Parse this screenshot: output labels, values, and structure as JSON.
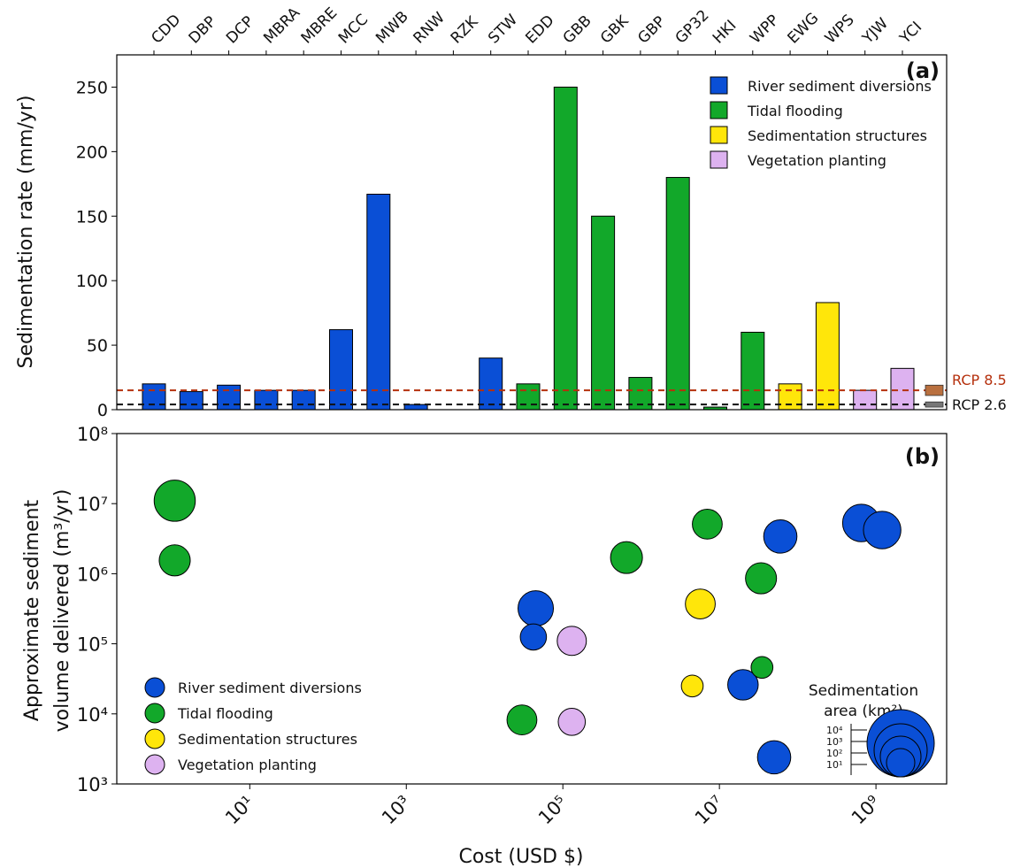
{
  "chart_data": [
    {
      "panel": "(a)",
      "type": "bar",
      "ylabel": "Sedimentation rate (mm/yr)",
      "ylim": [
        0,
        275
      ],
      "yticks": [
        0,
        50,
        100,
        150,
        200,
        250
      ],
      "grid": false,
      "legend_position": "top-right",
      "categories": [
        "CDD",
        "DBP",
        "DCP",
        "MBRA",
        "MBRE",
        "MCC",
        "MWB",
        "RNW",
        "RZK",
        "STW",
        "EDD",
        "GBB",
        "GBK",
        "GBP",
        "GP32",
        "HKI",
        "WPP",
        "EWG",
        "WPS",
        "YJW",
        "YCI"
      ],
      "values": [
        20,
        14,
        19,
        15,
        15,
        62,
        167,
        4,
        0,
        40,
        20,
        250,
        150,
        25,
        180,
        2,
        60,
        20,
        83,
        15,
        32
      ],
      "groups": [
        "River sediment diversions",
        "River sediment diversions",
        "River sediment diversions",
        "River sediment diversions",
        "River sediment diversions",
        "River sediment diversions",
        "River sediment diversions",
        "River sediment diversions",
        "River sediment diversions",
        "River sediment diversions",
        "Tidal flooding",
        "Tidal flooding",
        "Tidal flooding",
        "Tidal flooding",
        "Tidal flooding",
        "Tidal flooding",
        "Tidal flooding",
        "Sedimentation structures",
        "Sedimentation structures",
        "Vegetation planting",
        "Vegetation planting"
      ],
      "legend": [
        {
          "label": "River sediment diversions",
          "color": "#0a4fd6"
        },
        {
          "label": "Tidal flooding",
          "color": "#12a82a"
        },
        {
          "label": "Sedimentation structures",
          "color": "#ffe60a"
        },
        {
          "label": "Vegetation planting",
          "color": "#ddb2f0"
        }
      ],
      "reference_lines": [
        {
          "label": "RCP 8.5",
          "value": 15,
          "color": "#b5300d",
          "range": [
            11,
            19
          ],
          "range_color": "#b9703f"
        },
        {
          "label": "RCP 2.6",
          "value": 4,
          "color": "#111111",
          "range": [
            2,
            6
          ],
          "range_color": "#777777"
        }
      ]
    },
    {
      "panel": "(b)",
      "type": "scatter",
      "xlabel": "Cost (USD $)",
      "ylabel_line1": "Approximate sediment",
      "ylabel_line2": "volume delivered (m³/yr)",
      "x_scale": "log",
      "y_scale": "log",
      "xlim": [
        0.2,
        8000000000
      ],
      "ylim": [
        1000,
        100000000
      ],
      "xticks": [
        10,
        1000,
        100000,
        10000000,
        1000000000
      ],
      "xtick_labels": [
        "10¹",
        "10³",
        "10⁵",
        "10⁷",
        "10⁹"
      ],
      "yticks": [
        1000,
        10000,
        100000,
        1000000,
        10000000,
        100000000
      ],
      "ytick_labels": [
        "10³",
        "10⁴",
        "10⁵",
        "10⁶",
        "10⁷",
        "10⁸"
      ],
      "grid": false,
      "legend_position": "bottom-left",
      "legend": [
        {
          "label": "River sediment diversions",
          "color": "#0a4fd6"
        },
        {
          "label": "Tidal flooding",
          "color": "#12a82a"
        },
        {
          "label": "Sedimentation structures",
          "color": "#ffe60a"
        },
        {
          "label": "Vegetation planting",
          "color": "#ddb2f0"
        }
      ],
      "points": [
        {
          "x": 1.1,
          "y": 11000000,
          "area_km2": 5000,
          "group": "Tidal flooding"
        },
        {
          "x": 1.1,
          "y": 1550000,
          "area_km2": 400,
          "group": "Tidal flooding"
        },
        {
          "x": 45000,
          "y": 320000,
          "area_km2": 1200,
          "group": "River sediment diversions"
        },
        {
          "x": 42000,
          "y": 125000,
          "area_km2": 120,
          "group": "River sediment diversions"
        },
        {
          "x": 130000,
          "y": 110000,
          "area_km2": 250,
          "group": "Vegetation planting"
        },
        {
          "x": 30000,
          "y": 8200,
          "area_km2": 300,
          "group": "Tidal flooding"
        },
        {
          "x": 130000,
          "y": 7700,
          "area_km2": 150,
          "group": "Vegetation planting"
        },
        {
          "x": 650000,
          "y": 1700000,
          "area_km2": 500,
          "group": "Tidal flooding"
        },
        {
          "x": 5700000,
          "y": 370000,
          "area_km2": 300,
          "group": "Sedimentation structures"
        },
        {
          "x": 4500000,
          "y": 25000,
          "area_km2": 40,
          "group": "Sedimentation structures"
        },
        {
          "x": 7000000,
          "y": 5100000,
          "area_km2": 300,
          "group": "Tidal flooding"
        },
        {
          "x": 34000000,
          "y": 860000,
          "area_km2": 400,
          "group": "Tidal flooding"
        },
        {
          "x": 35000000,
          "y": 46000,
          "area_km2": 40,
          "group": "Tidal flooding"
        },
        {
          "x": 20000000,
          "y": 26000,
          "area_km2": 350,
          "group": "River sediment diversions"
        },
        {
          "x": 60000000,
          "y": 3400000,
          "area_km2": 700,
          "group": "River sediment diversions"
        },
        {
          "x": 50000000,
          "y": 2400,
          "area_km2": 700,
          "group": "River sediment diversions"
        },
        {
          "x": 650000000,
          "y": 5300000,
          "area_km2": 2000,
          "group": "River sediment diversions"
        },
        {
          "x": 1200000000,
          "y": 4200000,
          "area_km2": 2000,
          "group": "River sediment diversions"
        }
      ],
      "size_legend": {
        "title_line1": "Sedimentation",
        "title_line2": "area (km²)",
        "labels": [
          "10⁴",
          "10³",
          "10²",
          "10¹"
        ]
      }
    }
  ]
}
